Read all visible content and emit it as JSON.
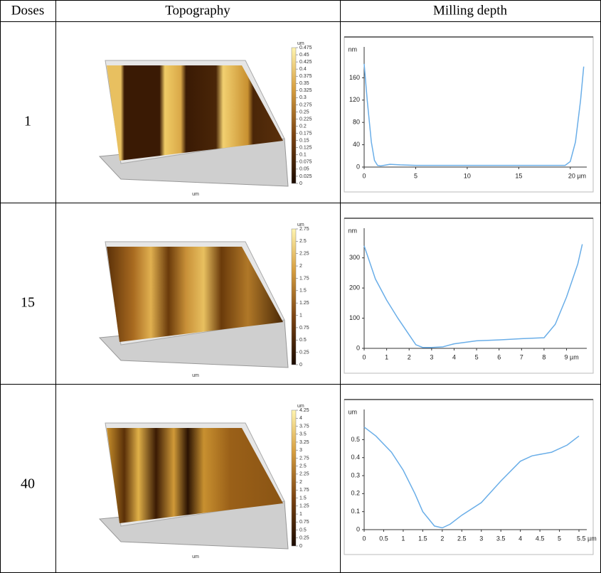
{
  "table": {
    "header": [
      "Doses",
      "Topography",
      "Milling depth"
    ],
    "rows": [
      {
        "dose": "1",
        "topography": {
          "unit": "um",
          "colorbar_ticks": [
            0,
            0.025,
            0.05,
            0.075,
            0.1,
            0.125,
            0.15,
            0.175,
            0.2,
            0.225,
            0.25,
            0.275,
            0.3,
            0.325,
            0.35,
            0.375,
            0.4,
            0.425,
            0.45,
            0.475
          ]
        },
        "milling_depth": {
          "type": "line",
          "y_unit": "nm",
          "color": "#6aaee8",
          "x": [
            0,
            0.3,
            0.7,
            1.0,
            1.3,
            1.6,
            2.5,
            3.5,
            5,
            10,
            15,
            19.5,
            20,
            20.5,
            21,
            21.3
          ],
          "values": [
            185,
            120,
            45,
            12,
            3,
            2,
            5,
            4,
            3,
            3,
            3,
            3,
            10,
            45,
            120,
            180
          ],
          "xlim": [
            0,
            21.6
          ],
          "ylim": [
            0,
            200
          ],
          "xticks": [
            0,
            5,
            10,
            15,
            {
              "value": 20,
              "label": "20 µm"
            }
          ],
          "yticks": [
            0,
            40,
            80,
            120,
            160
          ]
        }
      },
      {
        "dose": "15",
        "topography": {
          "unit": "um",
          "colorbar_ticks": [
            0,
            0.25,
            0.5,
            0.75,
            1,
            1.25,
            1.5,
            1.75,
            2,
            2.25,
            2.5,
            2.75
          ]
        },
        "milling_depth": {
          "type": "line",
          "y_unit": "nm",
          "color": "#6aaee8",
          "x": [
            0,
            0.5,
            1,
            1.5,
            2,
            2.3,
            2.6,
            3,
            3.5,
            4,
            5,
            6,
            7,
            8,
            8.5,
            9,
            9.5,
            9.7
          ],
          "values": [
            340,
            230,
            160,
            100,
            45,
            12,
            3,
            3,
            5,
            15,
            25,
            28,
            32,
            35,
            80,
            170,
            280,
            345
          ],
          "xlim": [
            0,
            9.9
          ],
          "ylim": [
            0,
            370
          ],
          "xticks": [
            0,
            1,
            2,
            3,
            4,
            5,
            6,
            7,
            8,
            {
              "value": 9,
              "label": "9 µm"
            }
          ],
          "yticks": [
            0,
            100,
            200,
            300
          ]
        }
      },
      {
        "dose": "40",
        "topography": {
          "unit": "um",
          "colorbar_ticks": [
            0,
            0.25,
            0.5,
            0.75,
            1,
            1.25,
            1.5,
            1.75,
            2,
            2.25,
            2.5,
            2.75,
            3,
            3.25,
            3.5,
            3.75,
            4,
            4.25
          ]
        },
        "milling_depth": {
          "type": "line",
          "y_unit": "um",
          "color": "#6aaee8",
          "x": [
            0,
            0.3,
            0.7,
            1,
            1.3,
            1.5,
            1.8,
            2,
            2.2,
            2.5,
            3,
            3.5,
            4,
            4.3,
            4.8,
            5.2,
            5.5
          ],
          "values": [
            0.57,
            0.52,
            0.43,
            0.33,
            0.2,
            0.1,
            0.02,
            0.01,
            0.03,
            0.08,
            0.15,
            0.27,
            0.38,
            0.41,
            0.43,
            0.47,
            0.52
          ],
          "xlim": [
            0,
            5.7
          ],
          "ylim": [
            0,
            0.62
          ],
          "xticks": [
            0,
            0.5,
            1,
            1.5,
            2,
            2.5,
            3,
            3.5,
            4,
            4.5,
            5,
            {
              "value": 5.5,
              "label": "5.5 µm"
            }
          ],
          "yticks": [
            0,
            0.1,
            0.2,
            0.3,
            0.4,
            0.5
          ]
        }
      }
    ]
  }
}
